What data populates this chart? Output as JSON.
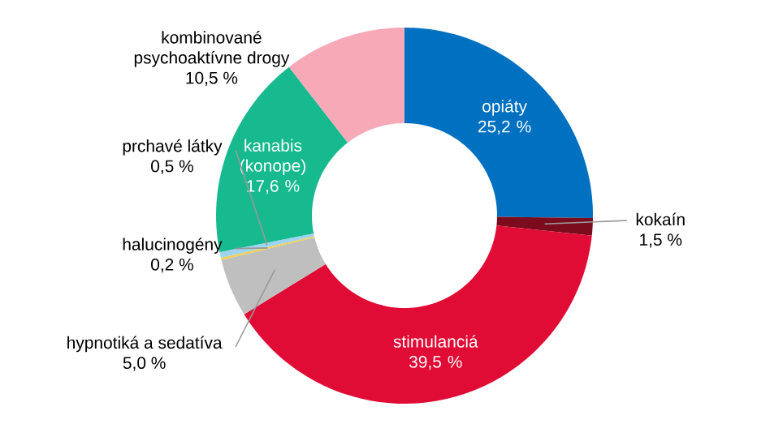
{
  "chart_data": {
    "type": "donut",
    "categories": [
      "opiáty",
      "kokaín",
      "stimulanciá",
      "hypnotiká a sedatíva",
      "halucinogény",
      "prchavé látky",
      "kanabis (konope)",
      "kombinované psychoaktívne drogy"
    ],
    "values": [
      25.2,
      1.5,
      39.5,
      5.0,
      0.2,
      0.5,
      17.6,
      10.5
    ],
    "value_labels": [
      "25,2 %",
      "1,5 %",
      "39,5 %",
      "5,0 %",
      "0,2 %",
      "0,5 %",
      "17,6 %",
      "10,5 %"
    ],
    "colors": [
      "#0070c0",
      "#7a0c1e",
      "#e00c35",
      "#bfbfbf",
      "#f0d050",
      "#9fd4f0",
      "#17b98f",
      "#f7a9b8"
    ]
  }
}
